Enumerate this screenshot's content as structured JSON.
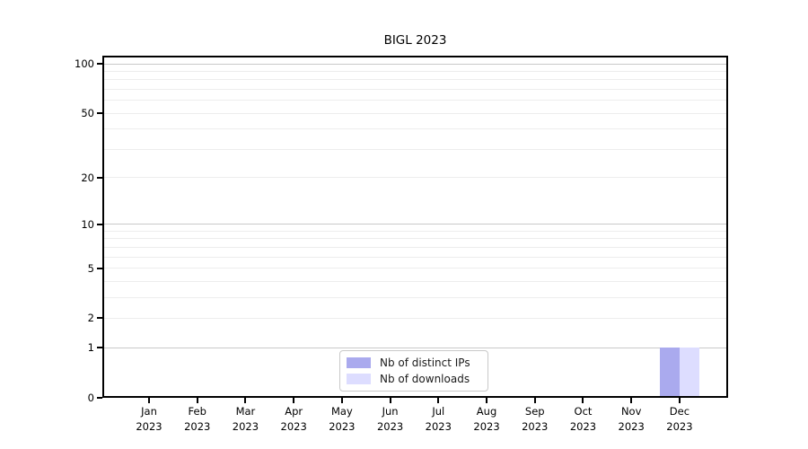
{
  "chart_data": {
    "type": "bar",
    "title": "BIGL 2023",
    "categories": [
      "Jan",
      "Feb",
      "Mar",
      "Apr",
      "May",
      "Jun",
      "Jul",
      "Aug",
      "Sep",
      "Oct",
      "Nov",
      "Dec"
    ],
    "x_axis": {
      "year": "2023"
    },
    "series": [
      {
        "name": "Nb of distinct IPs",
        "color": "#aaaaee",
        "values": [
          0,
          0,
          0,
          0,
          0,
          0,
          0,
          0,
          0,
          0,
          0,
          1
        ]
      },
      {
        "name": "Nb of downloads",
        "color": "#ddddff",
        "values": [
          0,
          0,
          0,
          0,
          0,
          0,
          0,
          0,
          0,
          0,
          0,
          1
        ]
      }
    ],
    "y_axis": {
      "scale": "log1p",
      "ticks": [
        0,
        1,
        2,
        5,
        10,
        20,
        50,
        100
      ],
      "max": 112,
      "major_gridlines": [
        1,
        10,
        100
      ],
      "minor_gridlines": [
        2,
        3,
        4,
        5,
        6,
        7,
        8,
        9,
        20,
        30,
        40,
        50,
        60,
        70,
        80,
        90
      ]
    },
    "legend": {
      "position": "bottom-center"
    },
    "grid": true,
    "colors": {
      "grid_minor": "#ededed",
      "grid_major": "#c9c9c9",
      "axis": "#000000",
      "legend_border": "#c9c9c9"
    }
  }
}
